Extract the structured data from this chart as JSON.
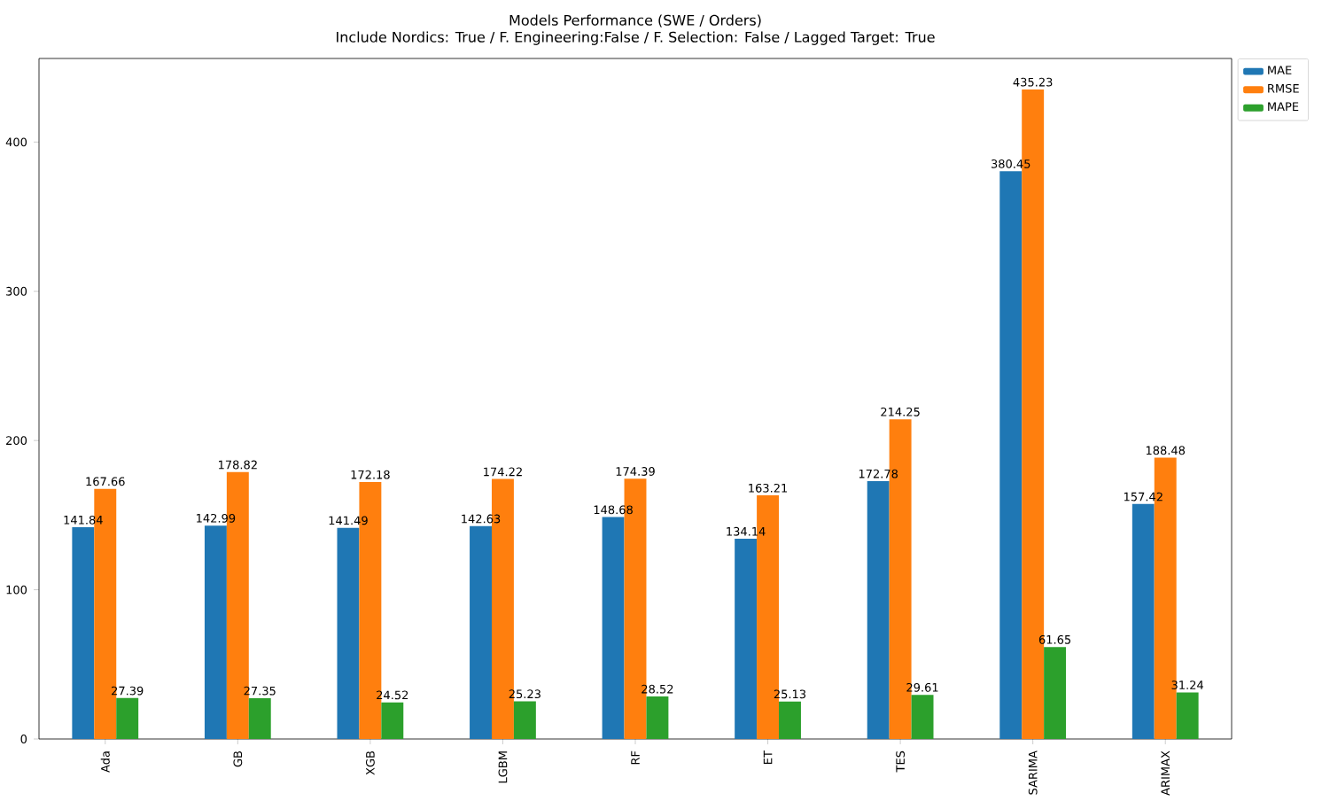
{
  "chart_data": {
    "type": "bar",
    "title": "Models Performance (SWE /  Orders)",
    "subtitle": "Include Nordics: True / F. Engineering:False / F. Selection: False / Lagged Target: True",
    "categories": [
      "Ada",
      "GB",
      "XGB",
      "LGBM",
      "RF",
      "ET",
      "TES",
      "SARIMA",
      "ARIMAX"
    ],
    "series": [
      {
        "name": "MAE",
        "color": "#1f77b4",
        "values": [
          141.84,
          142.99,
          141.49,
          142.63,
          148.68,
          134.14,
          172.78,
          380.45,
          157.42
        ]
      },
      {
        "name": "RMSE",
        "color": "#ff7f0e",
        "values": [
          167.66,
          178.82,
          172.18,
          174.22,
          174.39,
          163.21,
          214.25,
          435.23,
          188.48
        ]
      },
      {
        "name": "MAPE",
        "color": "#2ca02c",
        "values": [
          27.39,
          27.35,
          24.52,
          25.23,
          28.52,
          25.13,
          29.61,
          61.65,
          31.24
        ]
      }
    ],
    "ylim": [
      0,
      456
    ],
    "yticks": [
      0,
      100,
      200,
      300,
      400
    ],
    "data_labels": true,
    "legend": "top right",
    "grid": false
  }
}
